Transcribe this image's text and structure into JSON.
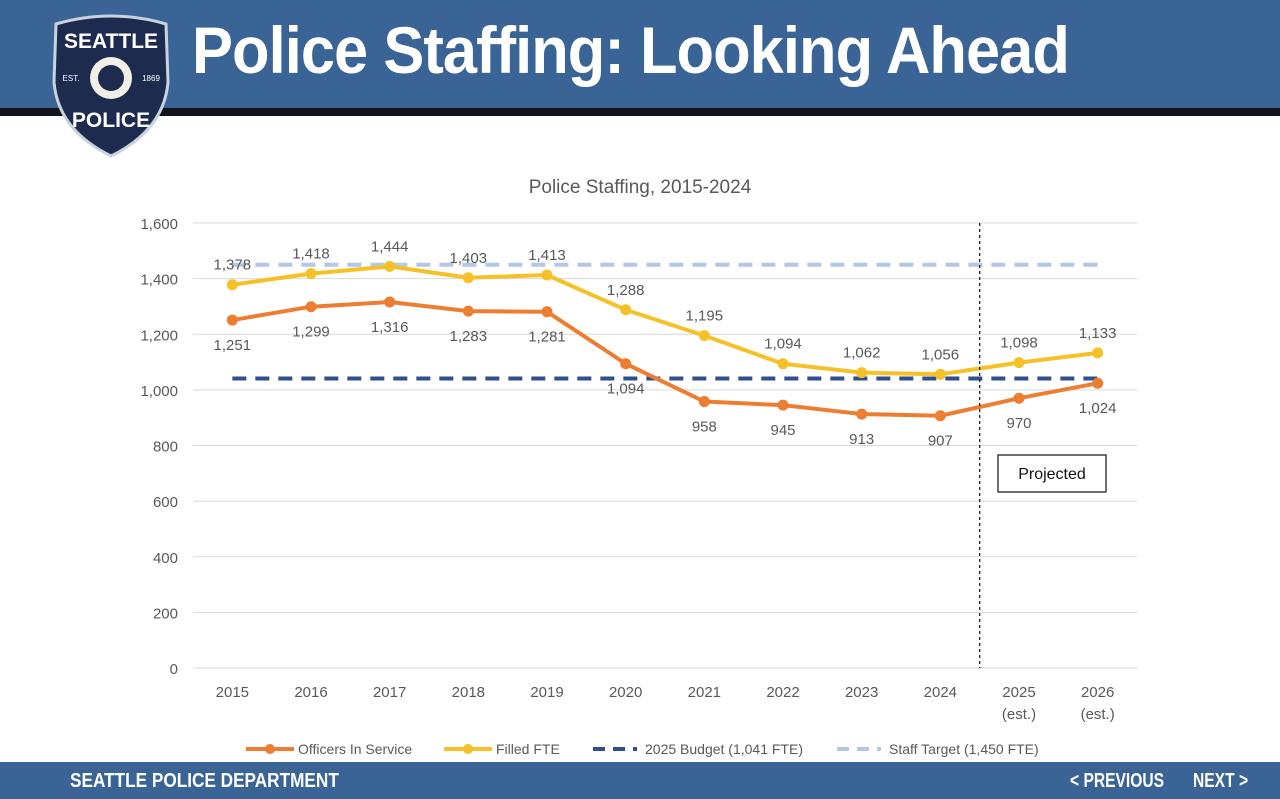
{
  "header": {
    "title": "Police Staffing: Looking Ahead"
  },
  "badge": {
    "top": "SEATTLE",
    "bottom": "POLICE",
    "est": "EST.",
    "year": "1869"
  },
  "footer": {
    "org": "SEATTLE POLICE DEPARTMENT",
    "previous_label": "< PREVIOUS",
    "next_label": "NEXT >"
  },
  "colors": {
    "header_bg": "#3a6496",
    "officers": "#ed7d31",
    "filled": "#f5c127",
    "budget": "#2f4f8f",
    "target": "#b4c7e7"
  },
  "chart_data": {
    "type": "line",
    "title": "Police Staffing, 2015-2024",
    "categories": [
      "2015",
      "2016",
      "2017",
      "2018",
      "2019",
      "2020",
      "2021",
      "2022",
      "2023",
      "2024",
      "2025\n(est.)",
      "2026\n(est.)"
    ],
    "series": [
      {
        "name": "Officers In Service",
        "values": [
          1251,
          1299,
          1316,
          1283,
          1281,
          1094,
          958,
          945,
          913,
          907,
          970,
          1024
        ],
        "label_position": "below"
      },
      {
        "name": "Filled FTE",
        "values": [
          1378,
          1418,
          1444,
          1403,
          1413,
          1288,
          1195,
          1094,
          1062,
          1056,
          1098,
          1133
        ],
        "label_position": "above"
      },
      {
        "name": "2025 Budget (1,041 FTE)",
        "constant": 1041,
        "style": "dashed"
      },
      {
        "name": "Staff Target (1,450 FTE)",
        "constant": 1450,
        "style": "dashed"
      }
    ],
    "yticks": [
      0,
      200,
      400,
      600,
      800,
      1000,
      1200,
      1400,
      1600
    ],
    "ytick_labels": [
      "0",
      "200",
      "400",
      "600",
      "800",
      "1,000",
      "1,200",
      "1,400",
      "1,600"
    ],
    "ylim": [
      0,
      1600
    ],
    "grid": true,
    "legend": "bottom",
    "annotation": {
      "text": "Projected",
      "divider_between": [
        "2024",
        "2025"
      ]
    },
    "xlabel": "",
    "ylabel": ""
  }
}
